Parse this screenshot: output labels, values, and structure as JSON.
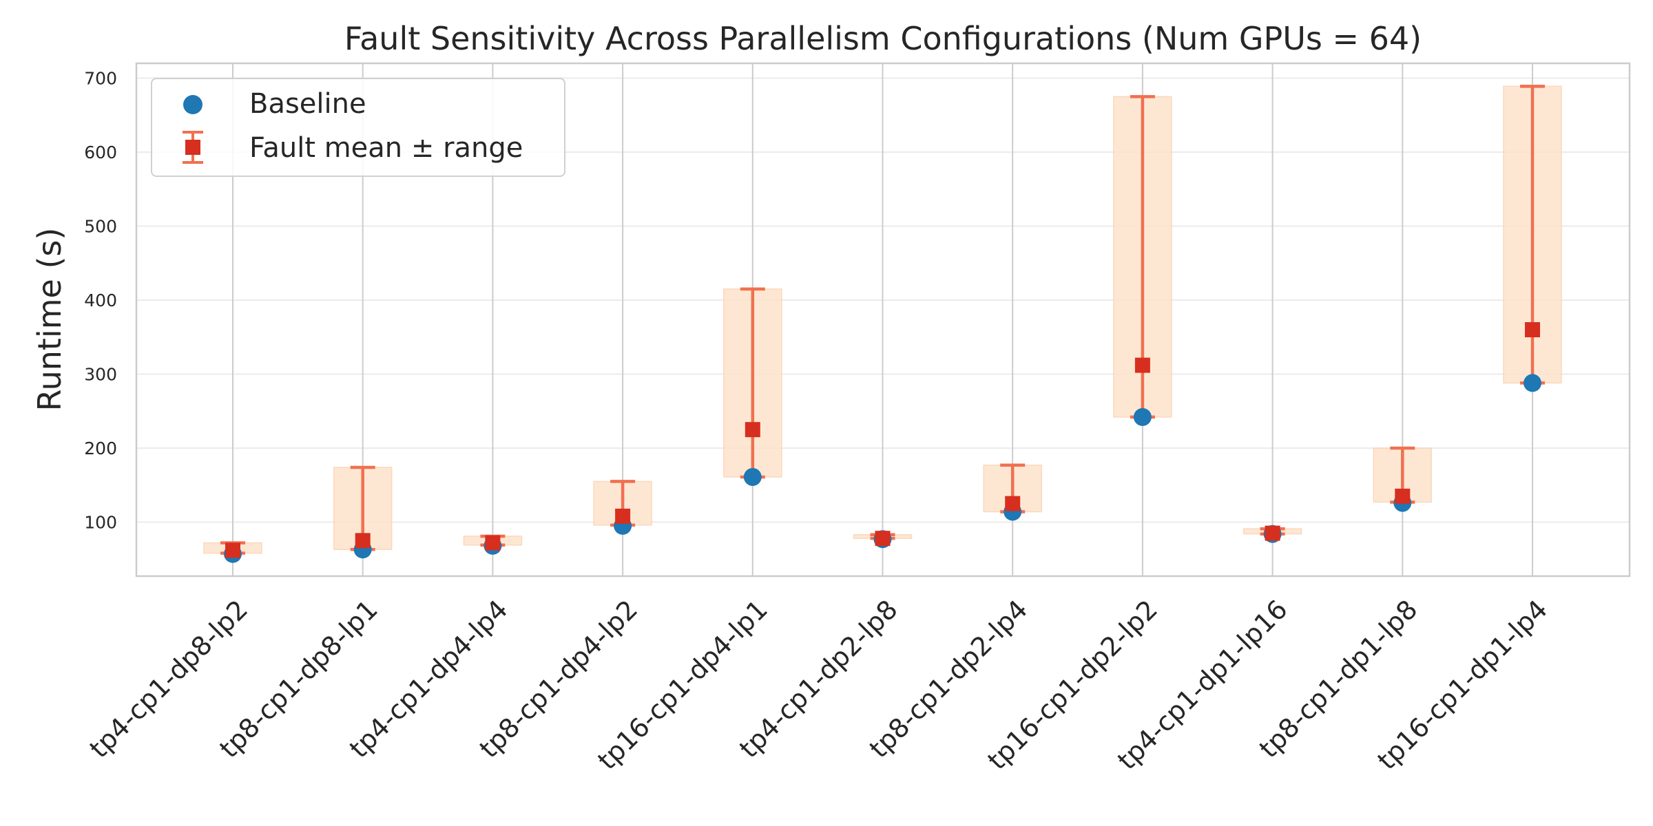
{
  "chart_data": {
    "type": "errorbar",
    "title": "Fault Sensitivity Across Parallelism Configurations (Num GPUs = 64)",
    "xlabel": "",
    "ylabel": "Runtime (s)",
    "ylim": [
      27,
      720
    ],
    "yticks": [
      100,
      200,
      300,
      400,
      500,
      600,
      700
    ],
    "grid": true,
    "legend_position": "top-left",
    "categories": [
      "tp4-cp1-dp8-lp2",
      "tp8-cp1-dp8-lp1",
      "tp4-cp1-dp4-lp4",
      "tp8-cp1-dp4-lp2",
      "tp16-cp1-dp4-lp1",
      "tp4-cp1-dp2-lp8",
      "tp8-cp1-dp2-lp4",
      "tp16-cp1-dp2-lp2",
      "tp4-cp1-dp1-lp16",
      "tp8-cp1-dp1-lp8",
      "tp16-cp1-dp1-lp4"
    ],
    "series": [
      {
        "name": "Baseline",
        "marker": "circle",
        "color": "#1f77b4",
        "values": [
          57,
          63,
          68,
          95,
          161,
          77,
          114,
          242,
          84,
          126,
          288
        ]
      },
      {
        "name": "Fault mean ± range",
        "marker": "square",
        "color": "#d62f1f",
        "error_color": "#f07050",
        "band_color": "#fde3cc",
        "values": [
          62,
          75,
          72,
          108,
          225,
          78,
          125,
          312,
          85,
          135,
          360
        ],
        "lower": [
          58,
          63,
          69,
          96,
          161,
          78,
          114,
          242,
          84,
          127,
          288
        ],
        "upper": [
          72,
          174,
          81,
          155,
          415,
          83,
          177,
          675,
          91,
          200,
          689
        ]
      }
    ]
  }
}
